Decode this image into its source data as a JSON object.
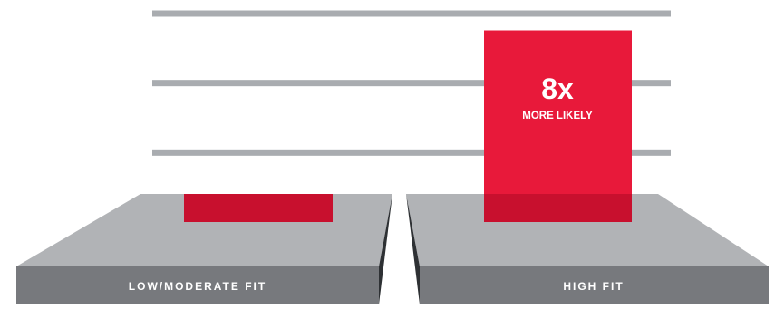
{
  "chart_data": {
    "type": "bar",
    "categories": [
      "LOW/MODERATE FIT",
      "HIGH FIT"
    ],
    "values": [
      1,
      8
    ],
    "annotations": [
      {
        "category": "HIGH FIT",
        "value_label": "8x",
        "sub_label": "MORE LIKELY"
      }
    ],
    "title": "",
    "xlabel": "",
    "ylabel": "",
    "gridlines": [
      2.9,
      5.8,
      8.7
    ],
    "ylim": [
      0,
      8.7
    ],
    "grid": true
  },
  "colors": {
    "bar": "#E8193A",
    "bar_shadow": "#C8102E",
    "gridline": "#A9ACB0",
    "platform_top": "#B1B3B6",
    "platform_front": "#77797D",
    "platform_inner_side": "#2E3134",
    "label_text": "#FFFFFF"
  }
}
